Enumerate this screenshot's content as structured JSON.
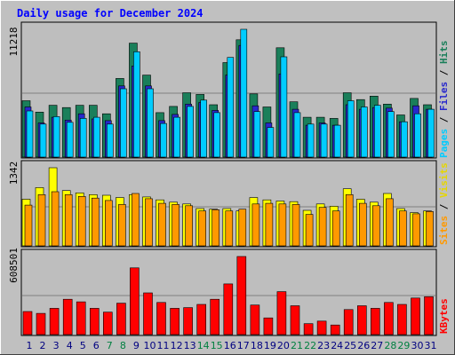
{
  "chart_data": [
    {
      "type": "bar",
      "panel": "pages-files-hits",
      "title": "Daily usage for December 2024",
      "y_max_label": "11218",
      "ylim": [
        0,
        11218
      ],
      "categories": [
        "1",
        "2",
        "3",
        "4",
        "5",
        "6",
        "7",
        "8",
        "9",
        "10",
        "11",
        "12",
        "13",
        "14",
        "15",
        "16",
        "17",
        "18",
        "19",
        "20",
        "21",
        "22",
        "23",
        "24",
        "25",
        "26",
        "27",
        "28",
        "29",
        "30",
        "31"
      ],
      "weekend_days": [
        7,
        8,
        14,
        15,
        21,
        22,
        28,
        29
      ],
      "series": [
        {
          "name": "Hits",
          "color": "#1a7f5a",
          "values": [
            4950,
            3950,
            4550,
            4350,
            4550,
            4550,
            3800,
            6900,
            10000,
            7200,
            3900,
            4450,
            5650,
            5500,
            4600,
            8300,
            10300,
            5550,
            4400,
            9600,
            4850,
            3500,
            3500,
            3400,
            5650,
            5050,
            5350,
            4650,
            3700,
            5150,
            4600
          ]
        },
        {
          "name": "Files",
          "color": "#2828cc",
          "values": [
            4400,
            3000,
            3500,
            3250,
            3800,
            3350,
            3200,
            6250,
            8000,
            6250,
            3200,
            3750,
            4650,
            4800,
            4100,
            7200,
            9800,
            4500,
            3000,
            7300,
            4200,
            2800,
            3000,
            2800,
            4600,
            4200,
            4350,
            4300,
            3100,
            4500,
            4200
          ]
        },
        {
          "name": "Pages",
          "color": "#00ccff",
          "values": [
            4050,
            2900,
            3550,
            3050,
            3400,
            3500,
            2900,
            6000,
            9250,
            6000,
            2950,
            3500,
            4450,
            5000,
            3900,
            8750,
            11218,
            4000,
            2600,
            8800,
            3900,
            2900,
            2900,
            2800,
            4950,
            4400,
            4550,
            4000,
            3100,
            3800,
            4200
          ]
        }
      ]
    },
    {
      "type": "bar",
      "panel": "visits-sites",
      "y_max_label": "1342",
      "ylim": [
        0,
        1342
      ],
      "categories": [
        "1",
        "2",
        "3",
        "4",
        "5",
        "6",
        "7",
        "8",
        "9",
        "10",
        "11",
        "12",
        "13",
        "14",
        "15",
        "16",
        "17",
        "18",
        "19",
        "20",
        "21",
        "22",
        "23",
        "24",
        "25",
        "26",
        "27",
        "28",
        "29",
        "30",
        "31"
      ],
      "series": [
        {
          "name": "Visits",
          "color": "#ffff00",
          "values": [
            800,
            1000,
            1342,
            950,
            910,
            880,
            870,
            830,
            880,
            840,
            790,
            750,
            720,
            640,
            630,
            640,
            600,
            830,
            790,
            770,
            760,
            610,
            720,
            680,
            980,
            800,
            750,
            900,
            640,
            570,
            600
          ]
        },
        {
          "name": "Sites",
          "color": "#ff9900",
          "values": [
            700,
            880,
            930,
            880,
            850,
            820,
            780,
            710,
            900,
            810,
            730,
            710,
            690,
            600,
            620,
            600,
            630,
            720,
            730,
            720,
            710,
            540,
            660,
            600,
            880,
            730,
            690,
            810,
            600,
            550,
            590
          ]
        }
      ]
    },
    {
      "type": "bar",
      "panel": "kbytes",
      "y_max_label": "608501",
      "ylim": [
        0,
        608501
      ],
      "categories": [
        "1",
        "2",
        "3",
        "4",
        "5",
        "6",
        "7",
        "8",
        "9",
        "10",
        "11",
        "12",
        "13",
        "14",
        "15",
        "16",
        "17",
        "18",
        "19",
        "20",
        "21",
        "22",
        "23",
        "24",
        "25",
        "26",
        "27",
        "28",
        "29",
        "30",
        "31"
      ],
      "series": [
        {
          "name": "KBytes",
          "color": "#ff0000",
          "values": [
            180000,
            165000,
            205000,
            275000,
            255000,
            205000,
            175000,
            245000,
            520000,
            325000,
            250000,
            205000,
            210000,
            235000,
            275000,
            395000,
            608501,
            230000,
            130000,
            335000,
            225000,
            85000,
            105000,
            75000,
            195000,
            225000,
            205000,
            250000,
            235000,
            285000,
            295000
          ]
        }
      ]
    }
  ],
  "labels": {
    "pages": "Pages",
    "files": "Files",
    "hits": "Hits",
    "sites": "Sites",
    "visits": "Visits",
    "kbytes": "KBytes",
    "sep": " / "
  },
  "colors": {
    "background": "#c0c0c0",
    "plot": "#bebebe",
    "title": "#0000ff",
    "day_label": "#000080",
    "weekend_label": "#008040",
    "grid": "#808080"
  }
}
